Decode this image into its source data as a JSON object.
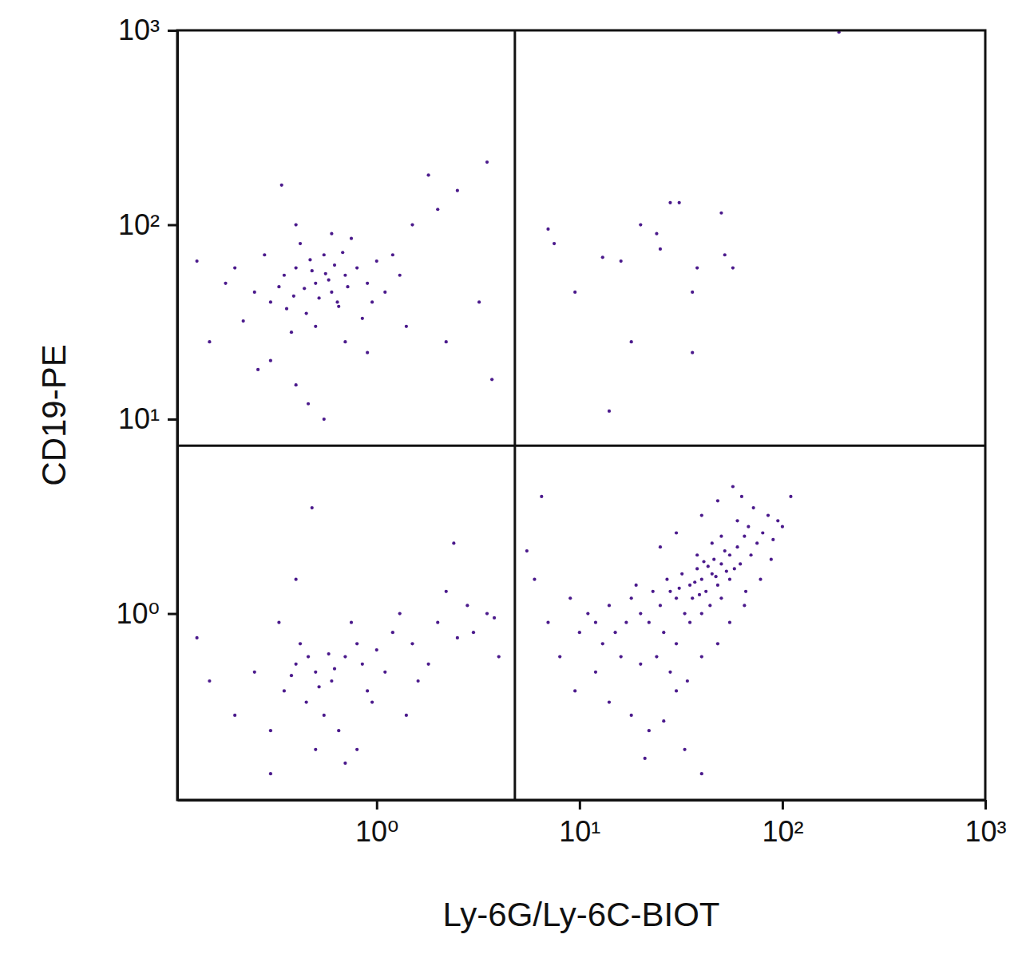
{
  "chart_data": {
    "type": "scatter",
    "x_label": "Ly-6G/Ly-6C-BIOT",
    "y_label": "CD19-PE",
    "log": true,
    "color": "#4b1a8c",
    "marker": "circle",
    "xlim": [
      0.104,
      1000
    ],
    "ylim": [
      0.11,
      1000
    ],
    "xticks": [
      {
        "value": 1,
        "label": "10⁰"
      },
      {
        "value": 10,
        "label": "10¹"
      },
      {
        "value": 100,
        "label": "10²"
      },
      {
        "value": 1000,
        "label": "10³"
      }
    ],
    "yticks": [
      {
        "value": 1,
        "label": "10⁰"
      },
      {
        "value": 10,
        "label": "10¹"
      },
      {
        "value": 100,
        "label": "10²"
      },
      {
        "value": 1000,
        "label": "10³"
      }
    ],
    "gates": {
      "x": 4.8,
      "y": 7.3
    },
    "x": [
      0.5,
      0.4,
      0.6,
      0.3,
      0.7,
      0.45,
      0.55,
      0.35,
      0.8,
      0.25,
      0.65,
      0.9,
      1.0,
      0.5,
      0.42,
      0.38,
      0.6,
      1.2,
      1.5,
      0.2,
      0.15,
      0.3,
      0.4,
      0.7,
      0.28,
      0.75,
      1.1,
      0.85,
      0.33,
      0.48,
      0.58,
      0.62,
      0.52,
      0.44,
      0.36,
      0.68,
      0.95,
      1.3,
      2.0,
      2.5,
      1.8,
      3.5,
      0.18,
      0.13,
      0.22,
      0.26,
      0.46,
      0.55,
      0.34,
      1.4,
      2.2,
      3.7,
      3.2,
      0.9,
      0.4,
      0.72,
      0.56,
      0.47,
      0.39,
      0.64,
      0.5,
      0.6,
      0.4,
      0.7,
      0.8,
      0.45,
      0.35,
      0.55,
      1.0,
      1.2,
      1.5,
      2.0,
      2.5,
      3.0,
      3.5,
      4.0,
      0.3,
      0.25,
      0.2,
      0.15,
      0.65,
      0.9,
      1.1,
      1.3,
      1.8,
      2.2,
      0.5,
      0.75,
      0.42,
      0.58,
      0.38,
      0.85,
      0.95,
      1.6,
      2.8,
      3.8,
      0.33,
      0.48,
      0.4,
      0.3,
      0.7,
      1.4,
      0.52,
      0.62,
      0.46,
      2.4,
      0.13,
      0.8,
      40,
      45,
      35,
      50,
      30,
      55,
      25,
      60,
      42,
      38,
      48,
      52,
      33,
      28,
      65,
      70,
      58,
      46,
      36,
      44,
      20,
      22,
      18,
      15,
      17,
      26,
      30,
      35,
      40,
      50,
      55,
      62,
      68,
      75,
      80,
      90,
      95,
      85,
      72,
      60,
      50,
      45,
      38,
      32,
      27,
      23,
      19,
      14,
      12,
      11,
      13,
      16,
      20,
      24,
      28,
      34,
      40,
      48,
      55,
      65,
      12,
      10,
      9,
      8,
      9.5,
      14,
      18,
      22,
      26,
      30,
      33,
      40,
      21,
      57,
      63,
      48,
      40,
      30,
      25,
      110,
      100,
      88,
      78,
      66,
      7,
      6,
      6.5,
      5.5,
      31,
      43,
      47,
      53,
      37,
      41,
      39,
      7,
      7.5,
      9.5,
      13,
      16,
      20,
      24,
      25,
      28,
      31,
      36,
      38,
      50,
      52,
      57,
      18,
      14,
      36,
      190
    ],
    "values": [
      50,
      60,
      45,
      40,
      55,
      35,
      70,
      55,
      60,
      45,
      38,
      50,
      65,
      30,
      80,
      28,
      90,
      70,
      100,
      60,
      25,
      20,
      15,
      25,
      70,
      85,
      45,
      33,
      48,
      58,
      52,
      62,
      42,
      47,
      37,
      72,
      40,
      55,
      120,
      150,
      180,
      210,
      50,
      65,
      32,
      18,
      12,
      10,
      160,
      30,
      25,
      16,
      40,
      22,
      100,
      48,
      56,
      66,
      43,
      40,
      0.5,
      0.45,
      0.55,
      0.6,
      0.7,
      0.35,
      0.4,
      0.3,
      0.65,
      0.8,
      0.7,
      0.9,
      0.75,
      0.8,
      1.0,
      0.6,
      0.25,
      0.5,
      0.3,
      0.45,
      0.25,
      0.4,
      0.5,
      1.0,
      0.55,
      1.3,
      0.2,
      0.9,
      0.7,
      0.62,
      0.48,
      0.55,
      0.35,
      0.45,
      1.1,
      0.95,
      0.9,
      3.5,
      1.5,
      0.15,
      0.17,
      0.3,
      0.42,
      0.52,
      0.6,
      2.3,
      0.75,
      0.2,
      1.5,
      1.6,
      1.4,
      1.8,
      1.2,
      2.0,
      1.1,
      2.2,
      1.3,
      1.7,
      1.4,
      2.1,
      1.0,
      1.3,
      2.5,
      2.0,
      1.7,
      1.9,
      1.2,
      1.1,
      1.0,
      0.9,
      1.2,
      0.8,
      0.9,
      0.8,
      0.7,
      0.9,
      1.0,
      1.2,
      1.5,
      1.8,
      2.8,
      2.3,
      2.6,
      2.4,
      3.0,
      3.2,
      3.5,
      3.0,
      2.5,
      2.3,
      2.0,
      1.6,
      1.5,
      1.3,
      1.4,
      1.1,
      0.9,
      1.0,
      0.7,
      0.6,
      0.55,
      0.6,
      0.5,
      0.45,
      0.6,
      0.7,
      0.9,
      1.1,
      0.5,
      0.8,
      1.2,
      0.6,
      0.4,
      0.35,
      0.3,
      0.25,
      0.28,
      0.4,
      0.2,
      0.15,
      0.18,
      4.5,
      4.0,
      3.8,
      3.2,
      2.6,
      2.2,
      4.0,
      2.8,
      1.9,
      1.5,
      1.3,
      0.9,
      1.5,
      4.0,
      2.1,
      1.35,
      1.75,
      1.55,
      1.65,
      1.45,
      1.85,
      1.25,
      95,
      80,
      45,
      68,
      65,
      100,
      90,
      75,
      130,
      130,
      45,
      60,
      115,
      70,
      60,
      25,
      11,
      22,
      980
    ]
  }
}
